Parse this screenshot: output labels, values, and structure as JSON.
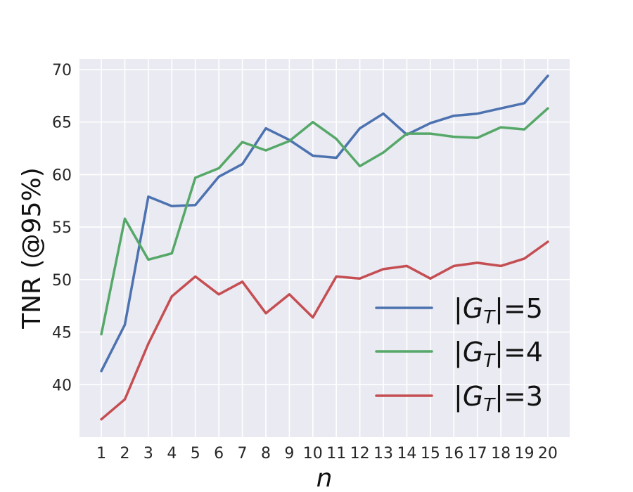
{
  "chart_data": {
    "type": "line",
    "xlabel": "n",
    "ylabel": "TNR (@95%)",
    "x": [
      1,
      2,
      3,
      4,
      5,
      6,
      7,
      8,
      9,
      10,
      11,
      12,
      13,
      14,
      15,
      16,
      17,
      18,
      19,
      20
    ],
    "xticks": [
      "1",
      "2",
      "3",
      "4",
      "5",
      "6",
      "7",
      "8",
      "9",
      "10",
      "11",
      "12",
      "13",
      "14",
      "15",
      "16",
      "17",
      "18",
      "19",
      "20"
    ],
    "yticks": [
      "40",
      "45",
      "50",
      "55",
      "60",
      "65",
      "70"
    ],
    "ylim": [
      35,
      71
    ],
    "grid": true,
    "legend_position": "lower-right",
    "series": [
      {
        "name": "|G_T|=5",
        "color": "#4c72b0",
        "values": [
          41.3,
          45.7,
          57.9,
          57.0,
          57.1,
          59.8,
          61.0,
          64.4,
          63.3,
          61.8,
          61.6,
          64.4,
          65.8,
          63.8,
          64.9,
          65.6,
          65.8,
          66.3,
          66.8,
          69.4
        ]
      },
      {
        "name": "|G_T|=4",
        "color": "#55a868",
        "values": [
          44.8,
          55.8,
          51.9,
          52.5,
          59.7,
          60.6,
          63.1,
          62.3,
          63.2,
          65.0,
          63.4,
          60.8,
          62.1,
          63.9,
          63.9,
          63.6,
          63.5,
          64.5,
          64.3,
          66.3
        ]
      },
      {
        "name": "|G_T|=3",
        "color": "#c44e52",
        "values": [
          36.7,
          38.6,
          43.9,
          48.4,
          50.3,
          48.6,
          49.8,
          46.8,
          48.6,
          46.4,
          50.3,
          50.1,
          51.0,
          51.3,
          50.1,
          51.3,
          51.6,
          51.3,
          52.0,
          53.6
        ]
      }
    ]
  },
  "legend_math": [
    {
      "base": "G",
      "sub": "T",
      "suffix": "=5"
    },
    {
      "base": "G",
      "sub": "T",
      "suffix": "=4"
    },
    {
      "base": "G",
      "sub": "T",
      "suffix": "=3"
    }
  ],
  "colors": {
    "plot_background": "#eaeaf2",
    "grid": "#ffffff"
  }
}
